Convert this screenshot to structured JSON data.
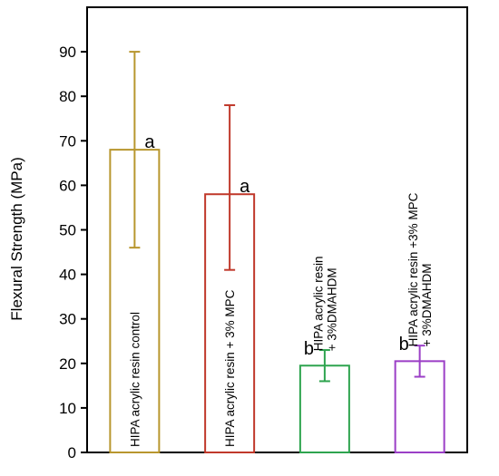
{
  "chart_data": {
    "type": "bar",
    "title": "",
    "xlabel": "",
    "ylabel": "Flexural Strength (MPa)",
    "ylim": [
      0,
      100
    ],
    "yticks": [
      0,
      10,
      20,
      30,
      40,
      50,
      60,
      70,
      80,
      90
    ],
    "grid": false,
    "legend": "none",
    "categories": [
      "HIPA acrylic resin control",
      "HIPA acrylic resin + 3% MPC",
      "HIPA acrylic resin\n+ 3%DMAHDM",
      "HIPA acrylic resin +3% MPC\n+ 3%DMAHDM"
    ],
    "values": [
      68,
      58,
      19.5,
      20.5
    ],
    "errors": [
      {
        "low": 46,
        "high": 90
      },
      {
        "low": 41,
        "high": 78
      },
      {
        "low": 16,
        "high": 23
      },
      {
        "low": 17,
        "high": 24
      }
    ],
    "significance": [
      "a",
      "a",
      "b",
      "b"
    ],
    "colors": [
      "#b8962e",
      "#c0392b",
      "#2ea44f",
      "#9b3fc6"
    ]
  }
}
